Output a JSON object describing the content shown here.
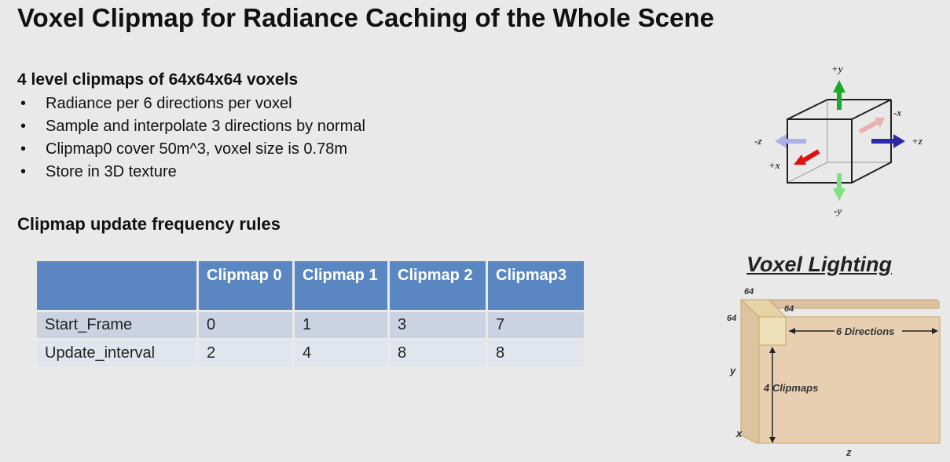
{
  "title": "Voxel Clipmap for Radiance Caching of the  Whole Scene",
  "section1": {
    "heading": "4 level clipmaps of 64x64x64 voxels",
    "bullets": [
      "Radiance per 6 directions per voxel",
      "Sample and interpolate 3 directions by normal",
      "Clipmap0 cover 50m^3, voxel size is 0.78m",
      "Store in 3D texture"
    ]
  },
  "section2": {
    "heading": "Clipmap update frequency rules"
  },
  "table": {
    "headers": [
      "",
      "Clipmap 0",
      "Clipmap 1",
      "Clipmap 2",
      "Clipmap3"
    ],
    "rows": [
      [
        "Start_Frame",
        "0",
        "1",
        "3",
        "7"
      ],
      [
        "Update_interval",
        "2",
        "4",
        "8",
        "8"
      ]
    ]
  },
  "cube_diagram": {
    "labels": {
      "py": "+y",
      "ny": "-y",
      "px": "+x",
      "nx": "-x",
      "pz": "+z",
      "nz": "-z"
    },
    "colors": {
      "y": "#1aaa2a",
      "x": "#e01010",
      "z": "#2a2aa8"
    }
  },
  "voxel_lighting": {
    "title": "Voxel Lighting",
    "dim1": "64",
    "dim2": "64",
    "dim3": "64",
    "directions": "6 Directions",
    "clipmaps": "4 Clipmaps",
    "axis_y": "y",
    "axis_x": "x",
    "axis_z": "z",
    "color": "#e8cfb2"
  }
}
